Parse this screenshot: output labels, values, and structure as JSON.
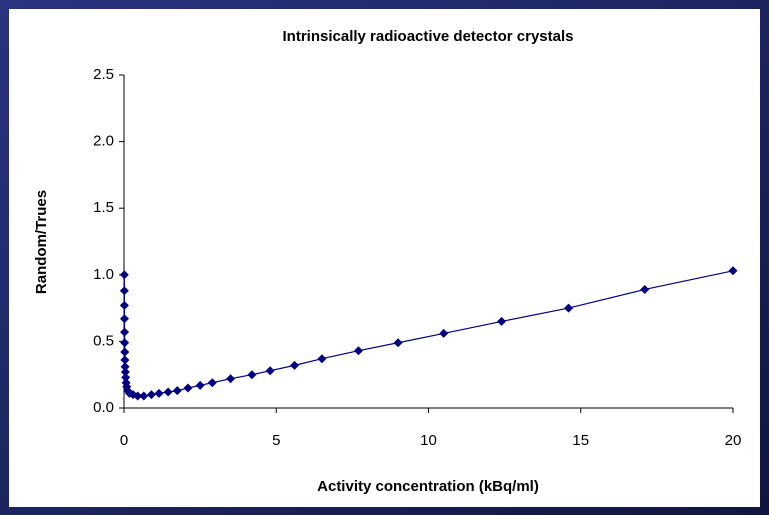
{
  "chart_data": {
    "type": "line",
    "title": "Intrinsically radioactive detector crystals",
    "x_label": "Activity concentration (kBq/ml)",
    "y_label": "Random/Trues",
    "x": [
      0.01,
      0.0115,
      0.013,
      0.015,
      0.018,
      0.021,
      0.025,
      0.03,
      0.036,
      0.045,
      0.055,
      0.07,
      0.09,
      0.12,
      0.18,
      0.3,
      0.45,
      0.65,
      0.9,
      1.15,
      1.45,
      1.75,
      2.1,
      2.5,
      2.9,
      3.5,
      4.2,
      4.8,
      5.6,
      6.5,
      7.7,
      9.0,
      10.5,
      12.4,
      14.6,
      17.1,
      20
    ],
    "series": [
      {
        "name": "Random/Trues",
        "color": "#000080",
        "values": [
          1.0,
          0.88,
          0.77,
          0.67,
          0.57,
          0.49,
          0.42,
          0.36,
          0.31,
          0.27,
          0.23,
          0.19,
          0.16,
          0.13,
          0.11,
          0.1,
          0.09,
          0.09,
          0.1,
          0.11,
          0.12,
          0.13,
          0.15,
          0.17,
          0.19,
          0.22,
          0.25,
          0.28,
          0.32,
          0.37,
          0.43,
          0.49,
          0.56,
          0.65,
          0.75,
          0.89,
          1.03
        ]
      }
    ],
    "xlim": [
      0,
      20
    ],
    "xticks": [
      0,
      5,
      10,
      15,
      20
    ],
    "ylim": [
      0,
      2.5
    ],
    "yticks": [
      {
        "value": 0,
        "label": "0.0"
      },
      {
        "value": 0.5,
        "label": "0.5"
      },
      {
        "value": 1,
        "label": "1.0"
      },
      {
        "value": 1.5,
        "label": "1.5"
      },
      {
        "value": 2,
        "label": "2.0"
      },
      {
        "value": 2.5,
        "label": "2.5"
      }
    ],
    "grid": false
  }
}
